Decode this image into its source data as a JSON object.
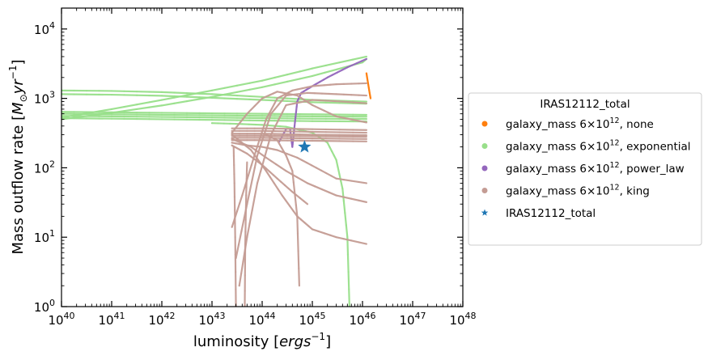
{
  "chart_data": {
    "type": "scatter",
    "xscale": "log",
    "yscale": "log",
    "xlim": [
      1e+40,
      1e+48
    ],
    "ylim": [
      1,
      20000
    ],
    "x_ticks": [
      {
        "base": "10",
        "exp": "40"
      },
      {
        "base": "10",
        "exp": "41"
      },
      {
        "base": "10",
        "exp": "42"
      },
      {
        "base": "10",
        "exp": "43"
      },
      {
        "base": "10",
        "exp": "44"
      },
      {
        "base": "10",
        "exp": "45"
      },
      {
        "base": "10",
        "exp": "46"
      },
      {
        "base": "10",
        "exp": "47"
      },
      {
        "base": "10",
        "exp": "48"
      }
    ],
    "y_ticks": [
      {
        "base": "10",
        "exp": "0"
      },
      {
        "base": "10",
        "exp": "1"
      },
      {
        "base": "10",
        "exp": "2"
      },
      {
        "base": "10",
        "exp": "3"
      },
      {
        "base": "10",
        "exp": "4"
      }
    ],
    "xlabel": {
      "text": "luminosity [",
      "math": "ergs",
      "sup": "−1",
      "close": "]"
    },
    "ylabel": {
      "text": "Mass outflow rate [",
      "math": "M",
      "sub": "⊙",
      "math2": "yr",
      "sup": "−1",
      "close": "]"
    },
    "legend": {
      "title": "IRAS12112_total",
      "position": "center-right-outside",
      "entries": [
        {
          "prefix": "galaxy_mass 6×10",
          "sup": "12",
          "suffix": ", none",
          "color": "#ff7f0e",
          "marker": "circle"
        },
        {
          "prefix": "galaxy_mass 6×10",
          "sup": "12",
          "suffix": ", exponential",
          "color": "#98df8a",
          "marker": "circle"
        },
        {
          "prefix": "galaxy_mass 6×10",
          "sup": "12",
          "suffix": ", power_law",
          "color": "#9467bd",
          "marker": "circle"
        },
        {
          "prefix": "galaxy_mass 6×10",
          "sup": "12",
          "suffix": ", king",
          "color": "#c49c94",
          "marker": "circle"
        },
        {
          "prefix": "IRAS12112_total",
          "sup": "",
          "suffix": "",
          "color": "#1f77b4",
          "marker": "star"
        }
      ]
    },
    "series": [
      {
        "label_index": 0,
        "color": "#ff7f0e",
        "tracks": [
          [
            [
              1.2e+46,
              2300
            ],
            [
              1.25e+46,
              1900
            ],
            [
              1.3e+46,
              1600
            ],
            [
              1.35e+46,
              1350
            ],
            [
              1.4e+46,
              1150
            ],
            [
              1.45e+46,
              1000
            ]
          ]
        ]
      },
      {
        "label_index": 1,
        "color": "#98df8a",
        "tracks": [
          [
            [
              1e+40,
              1300
            ],
            [
              1e+41,
              1280
            ],
            [
              1e+42,
              1230
            ],
            [
              1e+43,
              1150
            ],
            [
              1e+44,
              1050
            ],
            [
              1e+45,
              950
            ],
            [
              1.2e+46,
              900
            ]
          ],
          [
            [
              1e+40,
              1150
            ],
            [
              1e+41,
              1130
            ],
            [
              1e+42,
              1090
            ],
            [
              1e+43,
              1020
            ],
            [
              1e+44,
              950
            ],
            [
              1e+45,
              880
            ],
            [
              1.2e+46,
              840
            ]
          ],
          [
            [
              1e+40,
              500
            ],
            [
              1e+41,
              620
            ],
            [
              1e+42,
              790
            ],
            [
              1e+43,
              1050
            ],
            [
              1e+44,
              1450
            ],
            [
              1e+45,
              2100
            ],
            [
              1e+46,
              3300
            ],
            [
              1.2e+46,
              3700
            ]
          ],
          [
            [
              1e+40,
              530
            ],
            [
              1e+41,
              700
            ],
            [
              1e+42,
              950
            ],
            [
              1e+43,
              1300
            ],
            [
              1e+44,
              1800
            ],
            [
              1e+45,
              2700
            ],
            [
              1.2e+46,
              4000
            ]
          ],
          [
            [
              1e+40,
              640
            ],
            [
              1e+41,
              630
            ],
            [
              1e+42,
              620
            ],
            [
              1e+43,
              610
            ],
            [
              1e+44,
              600
            ],
            [
              1e+45,
              590
            ],
            [
              1.2e+46,
              580
            ]
          ],
          [
            [
              1e+40,
              600
            ],
            [
              1e+41,
              590
            ],
            [
              1e+42,
              580
            ],
            [
              1e+43,
              570
            ],
            [
              1e+44,
              560
            ],
            [
              1e+45,
              550
            ],
            [
              1.2e+46,
              545
            ]
          ],
          [
            [
              1e+40,
              560
            ],
            [
              1e+41,
              550
            ],
            [
              1e+42,
              540
            ],
            [
              1e+43,
              530
            ],
            [
              1e+44,
              520
            ],
            [
              1e+45,
              510
            ],
            [
              1.2e+46,
              505
            ]
          ],
          [
            [
              1e+40,
              520
            ],
            [
              1e+41,
              510
            ],
            [
              1e+42,
              500
            ],
            [
              1e+43,
              490
            ],
            [
              1e+44,
              480
            ],
            [
              1e+45,
              470
            ],
            [
              1.2e+46,
              465
            ]
          ],
          [
            [
              1e+43,
              440
            ],
            [
              3e+43,
              430
            ],
            [
              1e+44,
              415
            ],
            [
              3e+44,
              390
            ],
            [
              1e+45,
              320
            ],
            [
              2e+45,
              230
            ],
            [
              3e+45,
              130
            ],
            [
              4e+45,
              50
            ],
            [
              5e+45,
              10
            ],
            [
              5.5e+45,
              1
            ]
          ]
        ]
      },
      {
        "label_index": 2,
        "color": "#9467bd",
        "tracks": [
          [
            [
              4e+44,
              200
            ],
            [
              4.2e+44,
              280
            ],
            [
              4.5e+44,
              450
            ],
            [
              5e+44,
              900
            ],
            [
              6e+44,
              1200
            ],
            [
              1e+45,
              1500
            ],
            [
              2e+45,
              2000
            ],
            [
              5e+45,
              2800
            ],
            [
              1.2e+46,
              3700
            ]
          ],
          [
            [
              3.6e+44,
              360
            ],
            [
              3.8e+44,
              260
            ],
            [
              4e+44,
              200
            ]
          ],
          [
            [
              2.2e+44,
              240
            ],
            [
              2.6e+44,
              300
            ],
            [
              3e+44,
              360
            ]
          ]
        ]
      },
      {
        "label_index": 3,
        "color": "#c49c94",
        "tracks": [
          [
            [
              2.5e+43,
              370
            ],
            [
              1e+44,
              370
            ],
            [
              1e+45,
              360
            ],
            [
              1.2e+46,
              350
            ]
          ],
          [
            [
              2.5e+43,
              340
            ],
            [
              1e+44,
              340
            ],
            [
              1e+45,
              330
            ],
            [
              1.2e+46,
              320
            ]
          ],
          [
            [
              2.5e+43,
              310
            ],
            [
              1e+44,
              310
            ],
            [
              1e+45,
              300
            ],
            [
              1.2e+46,
              295
            ]
          ],
          [
            [
              2.5e+43,
              290
            ],
            [
              1e+44,
              290
            ],
            [
              1e+45,
              285
            ],
            [
              1.2e+46,
              280
            ]
          ],
          [
            [
              2.5e+43,
              270
            ],
            [
              1e+44,
              270
            ],
            [
              1e+45,
              265
            ],
            [
              1.2e+46,
              260
            ]
          ],
          [
            [
              2.5e+43,
              250
            ],
            [
              1e+44,
              250
            ],
            [
              1e+45,
              245
            ],
            [
              1.2e+46,
              240
            ]
          ],
          [
            [
              2.5e+43,
              14
            ],
            [
              4e+43,
              40
            ],
            [
              7e+43,
              150
            ],
            [
              1.2e+44,
              500
            ],
            [
              2e+44,
              1000
            ],
            [
              4e+44,
              1300
            ],
            [
              1e+45,
              1500
            ],
            [
              3e+45,
              1600
            ],
            [
              1.2e+46,
              1650
            ]
          ],
          [
            [
              3e+43,
              5
            ],
            [
              5e+43,
              30
            ],
            [
              8e+43,
              150
            ],
            [
              1.5e+44,
              600
            ],
            [
              3e+44,
              1100
            ],
            [
              8e+44,
              1200
            ],
            [
              3e+45,
              1150
            ],
            [
              1.2e+46,
              1100
            ]
          ],
          [
            [
              3.5e+43,
              2
            ],
            [
              5e+43,
              10
            ],
            [
              8e+43,
              60
            ],
            [
              1.5e+44,
              300
            ],
            [
              3e+44,
              800
            ],
            [
              1e+45,
              950
            ],
            [
              4e+45,
              900
            ],
            [
              1.2e+46,
              850
            ]
          ],
          [
            [
              2.5e+43,
              320
            ],
            [
              5e+43,
              600
            ],
            [
              1e+44,
              1000
            ],
            [
              2e+44,
              1250
            ],
            [
              5e+44,
              1100
            ],
            [
              1e+45,
              800
            ],
            [
              3e+45,
              550
            ],
            [
              1.2e+46,
              450
            ]
          ],
          [
            [
              2.5e+43,
              300
            ],
            [
              6e+43,
              180
            ],
            [
              1.2e+44,
              90
            ],
            [
              2.5e+44,
              40
            ],
            [
              5e+44,
              20
            ],
            [
              1e+45,
              13
            ],
            [
              3e+45,
              10
            ],
            [
              1.2e+46,
              8
            ]
          ],
          [
            [
              2.5e+43,
              260
            ],
            [
              6e+43,
              200
            ],
            [
              1.2e+44,
              140
            ],
            [
              3e+44,
              90
            ],
            [
              8e+44,
              60
            ],
            [
              3e+45,
              40
            ],
            [
              1.2e+46,
              32
            ]
          ],
          [
            [
              2.5e+43,
              230
            ],
            [
              5e+43,
              210
            ],
            [
              1e+44,
              200
            ],
            [
              2e+44,
              180
            ],
            [
              5e+44,
              140
            ],
            [
              1.2e+45,
              100
            ],
            [
              3e+45,
              70
            ],
            [
              1.2e+46,
              60
            ]
          ],
          [
            [
              2.5e+43,
              210
            ],
            [
              5e+43,
              160
            ],
            [
              1e+44,
              110
            ],
            [
              2e+44,
              70
            ],
            [
              4e+44,
              45
            ],
            [
              8e+44,
              30
            ]
          ],
          [
            [
              1.2e+44,
              300
            ],
            [
              2e+44,
              250
            ],
            [
              3e+44,
              150
            ],
            [
              4e+44,
              90
            ],
            [
              5e+44,
              20
            ],
            [
              5.5e+44,
              2
            ]
          ],
          [
            [
              2.7e+43,
              200
            ],
            [
              2.8e+43,
              60
            ],
            [
              2.9e+43,
              10
            ],
            [
              3e+43,
              1
            ]
          ],
          [
            [
              4.5e+43,
              1
            ],
            [
              4.6e+43,
              8
            ],
            [
              4.8e+43,
              40
            ],
            [
              5e+43,
              120
            ]
          ]
        ]
      }
    ],
    "observed_point": {
      "x": 7e+44,
      "y": 200,
      "color": "#1f77b4",
      "marker": "star"
    }
  }
}
